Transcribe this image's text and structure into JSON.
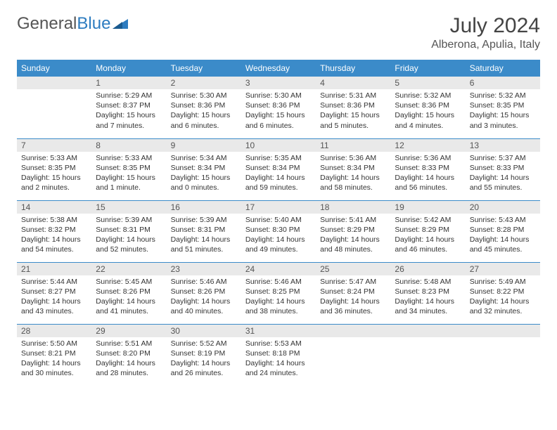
{
  "brand": {
    "part1": "General",
    "part2": "Blue"
  },
  "title": "July 2024",
  "location": "Alberona, Apulia, Italy",
  "colors": {
    "header_bg": "#3b8bc9",
    "header_text": "#ffffff",
    "daynum_bg": "#e9e9e9",
    "rule": "#3b8bc9",
    "text": "#333333"
  },
  "weekdays": [
    "Sunday",
    "Monday",
    "Tuesday",
    "Wednesday",
    "Thursday",
    "Friday",
    "Saturday"
  ],
  "weeks": [
    [
      null,
      {
        "n": "1",
        "sr": "5:29 AM",
        "ss": "8:37 PM",
        "dl": "15 hours and 7 minutes."
      },
      {
        "n": "2",
        "sr": "5:30 AM",
        "ss": "8:36 PM",
        "dl": "15 hours and 6 minutes."
      },
      {
        "n": "3",
        "sr": "5:30 AM",
        "ss": "8:36 PM",
        "dl": "15 hours and 6 minutes."
      },
      {
        "n": "4",
        "sr": "5:31 AM",
        "ss": "8:36 PM",
        "dl": "15 hours and 5 minutes."
      },
      {
        "n": "5",
        "sr": "5:32 AM",
        "ss": "8:36 PM",
        "dl": "15 hours and 4 minutes."
      },
      {
        "n": "6",
        "sr": "5:32 AM",
        "ss": "8:35 PM",
        "dl": "15 hours and 3 minutes."
      }
    ],
    [
      {
        "n": "7",
        "sr": "5:33 AM",
        "ss": "8:35 PM",
        "dl": "15 hours and 2 minutes."
      },
      {
        "n": "8",
        "sr": "5:33 AM",
        "ss": "8:35 PM",
        "dl": "15 hours and 1 minute."
      },
      {
        "n": "9",
        "sr": "5:34 AM",
        "ss": "8:34 PM",
        "dl": "15 hours and 0 minutes."
      },
      {
        "n": "10",
        "sr": "5:35 AM",
        "ss": "8:34 PM",
        "dl": "14 hours and 59 minutes."
      },
      {
        "n": "11",
        "sr": "5:36 AM",
        "ss": "8:34 PM",
        "dl": "14 hours and 58 minutes."
      },
      {
        "n": "12",
        "sr": "5:36 AM",
        "ss": "8:33 PM",
        "dl": "14 hours and 56 minutes."
      },
      {
        "n": "13",
        "sr": "5:37 AM",
        "ss": "8:33 PM",
        "dl": "14 hours and 55 minutes."
      }
    ],
    [
      {
        "n": "14",
        "sr": "5:38 AM",
        "ss": "8:32 PM",
        "dl": "14 hours and 54 minutes."
      },
      {
        "n": "15",
        "sr": "5:39 AM",
        "ss": "8:31 PM",
        "dl": "14 hours and 52 minutes."
      },
      {
        "n": "16",
        "sr": "5:39 AM",
        "ss": "8:31 PM",
        "dl": "14 hours and 51 minutes."
      },
      {
        "n": "17",
        "sr": "5:40 AM",
        "ss": "8:30 PM",
        "dl": "14 hours and 49 minutes."
      },
      {
        "n": "18",
        "sr": "5:41 AM",
        "ss": "8:29 PM",
        "dl": "14 hours and 48 minutes."
      },
      {
        "n": "19",
        "sr": "5:42 AM",
        "ss": "8:29 PM",
        "dl": "14 hours and 46 minutes."
      },
      {
        "n": "20",
        "sr": "5:43 AM",
        "ss": "8:28 PM",
        "dl": "14 hours and 45 minutes."
      }
    ],
    [
      {
        "n": "21",
        "sr": "5:44 AM",
        "ss": "8:27 PM",
        "dl": "14 hours and 43 minutes."
      },
      {
        "n": "22",
        "sr": "5:45 AM",
        "ss": "8:26 PM",
        "dl": "14 hours and 41 minutes."
      },
      {
        "n": "23",
        "sr": "5:46 AM",
        "ss": "8:26 PM",
        "dl": "14 hours and 40 minutes."
      },
      {
        "n": "24",
        "sr": "5:46 AM",
        "ss": "8:25 PM",
        "dl": "14 hours and 38 minutes."
      },
      {
        "n": "25",
        "sr": "5:47 AM",
        "ss": "8:24 PM",
        "dl": "14 hours and 36 minutes."
      },
      {
        "n": "26",
        "sr": "5:48 AM",
        "ss": "8:23 PM",
        "dl": "14 hours and 34 minutes."
      },
      {
        "n": "27",
        "sr": "5:49 AM",
        "ss": "8:22 PM",
        "dl": "14 hours and 32 minutes."
      }
    ],
    [
      {
        "n": "28",
        "sr": "5:50 AM",
        "ss": "8:21 PM",
        "dl": "14 hours and 30 minutes."
      },
      {
        "n": "29",
        "sr": "5:51 AM",
        "ss": "8:20 PM",
        "dl": "14 hours and 28 minutes."
      },
      {
        "n": "30",
        "sr": "5:52 AM",
        "ss": "8:19 PM",
        "dl": "14 hours and 26 minutes."
      },
      {
        "n": "31",
        "sr": "5:53 AM",
        "ss": "8:18 PM",
        "dl": "14 hours and 24 minutes."
      },
      null,
      null,
      null
    ]
  ],
  "labels": {
    "sunrise": "Sunrise:",
    "sunset": "Sunset:",
    "daylight": "Daylight:"
  }
}
